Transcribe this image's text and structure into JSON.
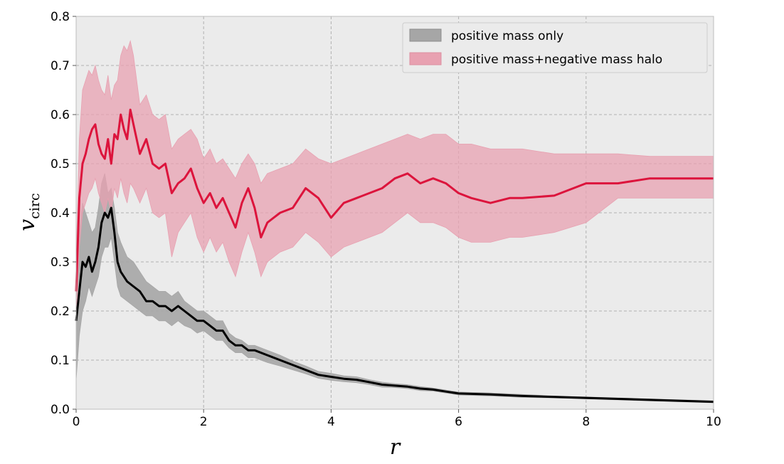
{
  "chart_data": {
    "type": "line",
    "title": "",
    "xlabel": "r",
    "ylabel_main": "v",
    "ylabel_sub": "circ",
    "xlim": [
      0,
      10
    ],
    "ylim": [
      0,
      0.8
    ],
    "xticks": [
      0,
      2,
      4,
      6,
      8,
      10
    ],
    "xtick_labels": [
      "0",
      "2",
      "4",
      "6",
      "8",
      "10"
    ],
    "yticks": [
      0.0,
      0.1,
      0.2,
      0.3,
      0.4,
      0.5,
      0.6,
      0.7,
      0.8
    ],
    "ytick_labels": [
      "0.0",
      "0.1",
      "0.2",
      "0.3",
      "0.4",
      "0.5",
      "0.6",
      "0.7",
      "0.8"
    ],
    "grid": true,
    "legend_position": "top-right",
    "series": [
      {
        "name": "positive mass only",
        "color": "#000000",
        "band_color": "#a6a6a6",
        "x": [
          0.0,
          0.05,
          0.1,
          0.15,
          0.2,
          0.25,
          0.3,
          0.35,
          0.4,
          0.45,
          0.5,
          0.55,
          0.6,
          0.65,
          0.7,
          0.8,
          0.9,
          1.0,
          1.1,
          1.2,
          1.3,
          1.4,
          1.5,
          1.6,
          1.7,
          1.8,
          1.9,
          2.0,
          2.1,
          2.2,
          2.3,
          2.4,
          2.5,
          2.6,
          2.7,
          2.8,
          3.0,
          3.2,
          3.4,
          3.6,
          3.8,
          4.0,
          4.2,
          4.4,
          4.6,
          4.8,
          5.0,
          5.2,
          5.4,
          5.6,
          5.8,
          6.0,
          6.5,
          7.0,
          7.5,
          8.0,
          8.5,
          9.0,
          9.5,
          10.0
        ],
        "y": [
          0.18,
          0.24,
          0.3,
          0.29,
          0.31,
          0.28,
          0.3,
          0.33,
          0.38,
          0.4,
          0.39,
          0.41,
          0.36,
          0.3,
          0.28,
          0.26,
          0.25,
          0.24,
          0.22,
          0.22,
          0.21,
          0.21,
          0.2,
          0.21,
          0.2,
          0.19,
          0.18,
          0.18,
          0.17,
          0.16,
          0.16,
          0.14,
          0.13,
          0.13,
          0.12,
          0.12,
          0.11,
          0.1,
          0.09,
          0.08,
          0.07,
          0.066,
          0.062,
          0.06,
          0.055,
          0.05,
          0.048,
          0.046,
          0.042,
          0.04,
          0.036,
          0.032,
          0.03,
          0.027,
          0.025,
          0.023,
          0.021,
          0.019,
          0.017,
          0.015
        ],
        "upper": [
          0.25,
          0.36,
          0.42,
          0.4,
          0.38,
          0.36,
          0.37,
          0.41,
          0.46,
          0.48,
          0.44,
          0.45,
          0.41,
          0.36,
          0.34,
          0.31,
          0.3,
          0.28,
          0.26,
          0.25,
          0.24,
          0.24,
          0.23,
          0.24,
          0.22,
          0.21,
          0.2,
          0.2,
          0.19,
          0.18,
          0.18,
          0.155,
          0.145,
          0.14,
          0.13,
          0.13,
          0.12,
          0.11,
          0.098,
          0.088,
          0.077,
          0.073,
          0.068,
          0.066,
          0.06,
          0.055,
          0.052,
          0.05,
          0.046,
          0.043,
          0.039,
          0.035,
          0.033,
          0.03,
          0.027,
          0.025,
          0.023,
          0.021,
          0.019,
          0.017
        ],
        "lower": [
          0.06,
          0.15,
          0.2,
          0.22,
          0.25,
          0.23,
          0.25,
          0.27,
          0.31,
          0.33,
          0.33,
          0.35,
          0.3,
          0.25,
          0.23,
          0.22,
          0.21,
          0.2,
          0.19,
          0.19,
          0.18,
          0.18,
          0.17,
          0.18,
          0.17,
          0.165,
          0.155,
          0.16,
          0.15,
          0.14,
          0.14,
          0.125,
          0.115,
          0.115,
          0.105,
          0.105,
          0.095,
          0.088,
          0.08,
          0.072,
          0.063,
          0.059,
          0.056,
          0.054,
          0.05,
          0.045,
          0.044,
          0.042,
          0.038,
          0.037,
          0.033,
          0.029,
          0.027,
          0.024,
          0.023,
          0.021,
          0.019,
          0.017,
          0.015,
          0.013
        ]
      },
      {
        "name": "positive mass+negative mass halo",
        "color": "#dc143c",
        "band_color": "#e8a1b1",
        "x": [
          0.0,
          0.05,
          0.1,
          0.15,
          0.2,
          0.25,
          0.3,
          0.35,
          0.4,
          0.45,
          0.5,
          0.55,
          0.6,
          0.65,
          0.7,
          0.75,
          0.8,
          0.85,
          0.9,
          1.0,
          1.1,
          1.2,
          1.3,
          1.4,
          1.5,
          1.6,
          1.7,
          1.8,
          1.9,
          2.0,
          2.1,
          2.2,
          2.3,
          2.4,
          2.5,
          2.6,
          2.7,
          2.8,
          2.9,
          3.0,
          3.2,
          3.4,
          3.6,
          3.8,
          4.0,
          4.2,
          4.4,
          4.6,
          4.8,
          5.0,
          5.2,
          5.4,
          5.6,
          5.8,
          6.0,
          6.2,
          6.5,
          6.8,
          7.0,
          7.5,
          8.0,
          8.5,
          9.0,
          9.5,
          10.0
        ],
        "y": [
          0.24,
          0.43,
          0.5,
          0.52,
          0.55,
          0.57,
          0.58,
          0.54,
          0.52,
          0.51,
          0.55,
          0.5,
          0.56,
          0.55,
          0.6,
          0.57,
          0.55,
          0.61,
          0.58,
          0.52,
          0.55,
          0.5,
          0.49,
          0.5,
          0.44,
          0.46,
          0.47,
          0.49,
          0.45,
          0.42,
          0.44,
          0.41,
          0.43,
          0.4,
          0.37,
          0.42,
          0.45,
          0.41,
          0.35,
          0.38,
          0.4,
          0.41,
          0.45,
          0.43,
          0.39,
          0.42,
          0.43,
          0.44,
          0.45,
          0.47,
          0.48,
          0.46,
          0.47,
          0.46,
          0.44,
          0.43,
          0.42,
          0.43,
          0.43,
          0.435,
          0.46,
          0.46,
          0.47,
          0.47,
          0.47
        ],
        "upper": [
          0.3,
          0.55,
          0.65,
          0.67,
          0.69,
          0.68,
          0.7,
          0.67,
          0.65,
          0.64,
          0.68,
          0.63,
          0.66,
          0.67,
          0.72,
          0.74,
          0.73,
          0.75,
          0.72,
          0.62,
          0.64,
          0.6,
          0.59,
          0.6,
          0.53,
          0.55,
          0.56,
          0.57,
          0.55,
          0.51,
          0.53,
          0.5,
          0.51,
          0.49,
          0.47,
          0.5,
          0.52,
          0.5,
          0.46,
          0.48,
          0.49,
          0.5,
          0.53,
          0.51,
          0.5,
          0.51,
          0.52,
          0.53,
          0.54,
          0.55,
          0.56,
          0.55,
          0.56,
          0.56,
          0.54,
          0.54,
          0.53,
          0.53,
          0.53,
          0.52,
          0.52,
          0.52,
          0.515,
          0.515,
          0.515
        ],
        "lower": [
          0.18,
          0.33,
          0.4,
          0.42,
          0.44,
          0.45,
          0.47,
          0.44,
          0.42,
          0.4,
          0.43,
          0.4,
          0.45,
          0.43,
          0.47,
          0.44,
          0.42,
          0.46,
          0.45,
          0.42,
          0.45,
          0.4,
          0.39,
          0.4,
          0.31,
          0.36,
          0.38,
          0.4,
          0.35,
          0.32,
          0.35,
          0.32,
          0.34,
          0.3,
          0.27,
          0.32,
          0.36,
          0.32,
          0.27,
          0.3,
          0.32,
          0.33,
          0.36,
          0.34,
          0.31,
          0.33,
          0.34,
          0.35,
          0.36,
          0.38,
          0.4,
          0.38,
          0.38,
          0.37,
          0.35,
          0.34,
          0.34,
          0.35,
          0.35,
          0.36,
          0.38,
          0.43,
          0.43,
          0.43,
          0.43
        ]
      }
    ]
  }
}
